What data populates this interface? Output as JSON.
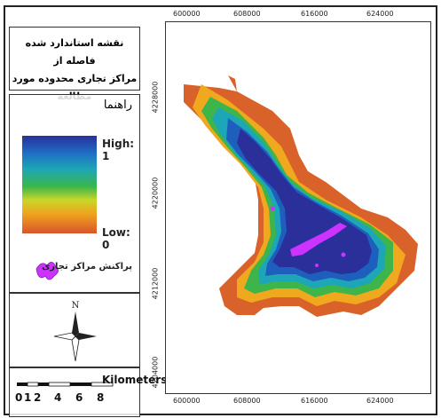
{
  "map": {
    "title_line1": "نقشه استاندارد شده فاصله از",
    "title_line2": "مراکز تجاری محدوده مورد مطالعه",
    "legend_title": "راهنما",
    "gradient_high": "High: 1",
    "gradient_low": "Low: 0",
    "symbol_label": "پراکنش مراکز تجاری",
    "north_label": "N",
    "scale_unit": "Kilometers",
    "scale_values": [
      "0",
      "1",
      "2",
      "4",
      "6",
      "8"
    ],
    "x_ticks_top": [
      "600000",
      "608000",
      "616000",
      "624000"
    ],
    "x_ticks_bottom": [
      "600000",
      "608000",
      "616000",
      "624000"
    ],
    "y_ticks_left": [
      "4228000",
      "4220000",
      "4212000",
      "4204000"
    ],
    "colors": {
      "high": "#2b2f9a",
      "low": "#d9542a",
      "commercial": "#cc33ff"
    }
  }
}
